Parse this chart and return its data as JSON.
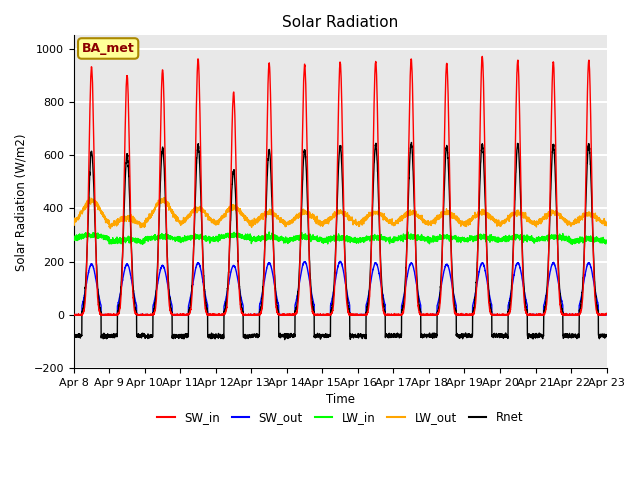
{
  "title": "Solar Radiation",
  "ylabel": "Solar Radiation (W/m2)",
  "xlabel": "Time",
  "ylim": [
    -200,
    1050
  ],
  "xlim": [
    0,
    360
  ],
  "bg_color": "#e8e8e8",
  "grid_color": "white",
  "annotation_text": "BA_met",
  "annotation_bg": "#ffff99",
  "annotation_border": "#aa8800",
  "x_tick_labels": [
    "Apr 8",
    "Apr 9",
    "Apr 10",
    "Apr 11",
    "Apr 12",
    "Apr 13",
    "Apr 14",
    "Apr 15",
    "Apr 16",
    "Apr 17",
    "Apr 18",
    "Apr 19",
    "Apr 20",
    "Apr 21",
    "Apr 22",
    "Apr 23"
  ],
  "x_tick_positions": [
    0,
    24,
    48,
    72,
    96,
    120,
    144,
    168,
    192,
    216,
    240,
    264,
    288,
    312,
    336,
    360
  ],
  "n_days": 15,
  "sw_in_peak": [
    930,
    900,
    920,
    960,
    835,
    945,
    940,
    950,
    950,
    960,
    945,
    970,
    955,
    950,
    955
  ],
  "sw_out_peak": [
    190,
    190,
    185,
    195,
    185,
    195,
    200,
    200,
    195,
    195,
    190,
    195,
    195,
    195,
    195
  ],
  "lw_in_base": [
    285,
    270,
    280,
    278,
    285,
    278,
    278,
    275,
    275,
    280,
    278,
    278,
    278,
    278,
    272
  ],
  "lw_out_base": [
    335,
    330,
    335,
    335,
    335,
    335,
    335,
    335,
    335,
    335,
    335,
    335,
    335,
    335,
    335
  ],
  "lw_out_peak": [
    430,
    365,
    430,
    400,
    405,
    385,
    385,
    385,
    385,
    385,
    385,
    385,
    385,
    385,
    380
  ],
  "rnet_peak": [
    615,
    600,
    625,
    635,
    540,
    620,
    620,
    635,
    640,
    645,
    635,
    645,
    640,
    640,
    640
  ],
  "rnet_night": [
    -80,
    -78,
    -80,
    -80,
    -80,
    -78,
    -78,
    -78,
    -78,
    -78,
    -78,
    -78,
    -78,
    -78,
    -78
  ],
  "sw_in_sigma": 1.8,
  "sw_out_sigma": 3.5,
  "rnet_sigma": 2.2,
  "day_start_h": 5.5,
  "day_end_h": 18.5,
  "series_colors": {
    "SW_in": "red",
    "SW_out": "blue",
    "LW_in": "lime",
    "LW_out": "orange",
    "Rnet": "black"
  },
  "lw": 1.0
}
